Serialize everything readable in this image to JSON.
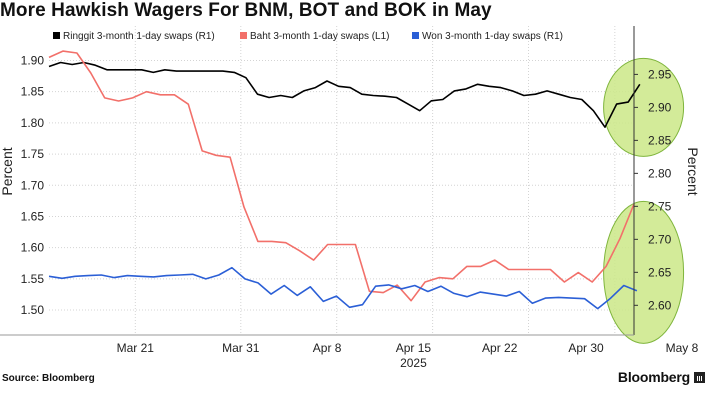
{
  "title": "More Hawkish Wagers For BNM, BOT and BOK in May",
  "source": "Source: Bloomberg",
  "brand": "Bloomberg",
  "chart_data": {
    "type": "line",
    "title": "More Hawkish Wagers For BNM, BOT and BOK in May",
    "ylabel_left": "Percent",
    "ylabel_right": "Percent",
    "ylim_left": [
      1.46,
      1.92
    ],
    "ylim_right": [
      2.555,
      2.99
    ],
    "yticks_left": [
      1.5,
      1.55,
      1.6,
      1.65,
      1.7,
      1.75,
      1.8,
      1.85,
      1.9
    ],
    "yticks_right": [
      2.6,
      2.65,
      2.7,
      2.75,
      2.8,
      2.85,
      2.9,
      2.95
    ],
    "xlim": [
      0,
      61
    ],
    "x_tick_positions": [
      9,
      20,
      30,
      40,
      50,
      59
    ],
    "x_tick_labels": [
      "Mar 21",
      "Mar 31",
      "Apr 8",
      "Apr 15",
      "Apr 22",
      "Apr 30",
      "May 8"
    ],
    "x_tick_label_positions": [
      9,
      20,
      29,
      38,
      47,
      56,
      66
    ],
    "year_label": "2025",
    "grid": true,
    "legend_position": "top",
    "highlights": [
      {
        "label": "upper-circle",
        "x_center": 62,
        "y_center_right": 2.9
      },
      {
        "label": "lower-circle",
        "x_center": 62,
        "y_center_right": 2.65
      }
    ],
    "series": [
      {
        "name": "Ringgit 3-month 1-day swaps (R1)",
        "axis": "right",
        "color": "#000000",
        "values": [
          2.962,
          2.968,
          2.965,
          2.968,
          2.964,
          2.957,
          2.957,
          2.957,
          2.957,
          2.953,
          2.957,
          2.955,
          2.955,
          2.955,
          2.955,
          2.955,
          2.953,
          2.945,
          2.92,
          2.915,
          2.918,
          2.915,
          2.925,
          2.93,
          2.94,
          2.932,
          2.93,
          2.92,
          2.918,
          2.917,
          2.915,
          2.905,
          2.895,
          2.91,
          2.912,
          2.925,
          2.928,
          2.935,
          2.932,
          2.93,
          2.925,
          2.918,
          2.92,
          2.925,
          2.92,
          2.915,
          2.912,
          2.895,
          2.87,
          2.905,
          2.908,
          2.935
        ]
      },
      {
        "name": "Baht 3-month 1-day swaps (L1)",
        "axis": "left",
        "color": "#F2706A",
        "values": [
          1.905,
          1.915,
          1.912,
          1.88,
          1.84,
          1.835,
          1.84,
          1.85,
          1.845,
          1.845,
          1.83,
          1.755,
          1.748,
          1.745,
          1.665,
          1.61,
          1.61,
          1.608,
          1.595,
          1.58,
          1.605,
          1.605,
          1.605,
          1.53,
          1.528,
          1.54,
          1.515,
          1.545,
          1.552,
          1.55,
          1.57,
          1.57,
          1.58,
          1.565,
          1.565,
          1.565,
          1.565,
          1.545,
          1.56,
          1.545,
          1.57,
          1.615,
          1.67
        ]
      },
      {
        "name": "Won 3-month 1-day swaps (R1)",
        "axis": "right",
        "color": "#2B5FD6",
        "values": [
          2.644,
          2.641,
          2.644,
          2.645,
          2.646,
          2.642,
          2.645,
          2.644,
          2.643,
          2.645,
          2.646,
          2.647,
          2.64,
          2.646,
          2.657,
          2.64,
          2.634,
          2.617,
          2.63,
          2.615,
          2.628,
          2.606,
          2.614,
          2.597,
          2.601,
          2.629,
          2.631,
          2.625,
          2.63,
          2.621,
          2.629,
          2.618,
          2.613,
          2.62,
          2.617,
          2.614,
          2.621,
          2.603,
          2.611,
          2.612,
          2.611,
          2.61,
          2.595,
          2.611,
          2.63,
          2.622
        ]
      }
    ]
  }
}
